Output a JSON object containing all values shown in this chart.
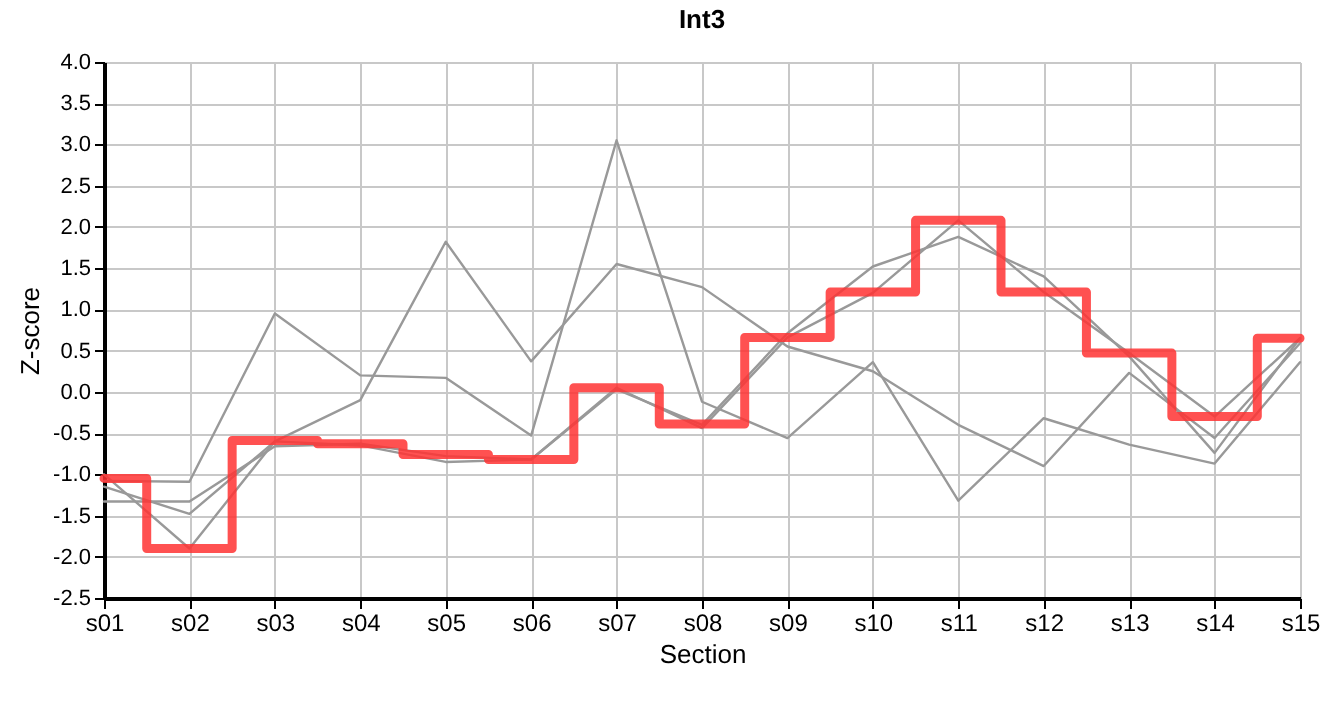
{
  "chart_data": {
    "type": "line",
    "title": "Int3",
    "xlabel": "Section",
    "ylabel": "Z-score",
    "categories": [
      "s01",
      "s02",
      "s03",
      "s04",
      "s05",
      "s06",
      "s07",
      "s08",
      "s09",
      "s10",
      "s11",
      "s12",
      "s13",
      "s14",
      "s15"
    ],
    "series": [
      {
        "color": "#999999",
        "values": [
          -1.15,
          -1.48,
          -0.6,
          -0.1,
          1.82,
          0.37,
          1.55,
          1.27,
          0.55,
          0.25,
          -0.4,
          -0.9,
          0.23,
          -0.56,
          0.59
        ]
      },
      {
        "color": "#999999",
        "values": [
          -1.08,
          -1.09,
          0.95,
          0.2,
          0.17,
          -0.53,
          3.05,
          -0.12,
          -0.56,
          0.36,
          -1.32,
          -0.32,
          -0.64,
          -0.87,
          0.36
        ]
      },
      {
        "color": "#999999",
        "values": [
          -1.0,
          -1.9,
          -0.6,
          -0.65,
          -0.85,
          -0.82,
          0.03,
          -0.4,
          0.71,
          1.52,
          1.88,
          1.4,
          0.43,
          -0.74,
          0.65
        ]
      },
      {
        "color": "#999999",
        "values": [
          -1.33,
          -1.33,
          -0.66,
          -0.63,
          -0.78,
          -0.82,
          0.05,
          -0.44,
          0.66,
          1.2,
          2.08,
          1.21,
          0.47,
          -0.3,
          0.65
        ]
      },
      {
        "type": "step",
        "color": "#ff3333",
        "values": [
          -1.05,
          -1.9,
          -0.59,
          -0.63,
          -0.76,
          -0.82,
          0.05,
          -0.39,
          0.66,
          1.21,
          2.08,
          1.21,
          0.47,
          -0.3,
          0.65
        ]
      }
    ],
    "ylim": [
      -2.5,
      4.0
    ],
    "yticks": [
      -2.5,
      {
        "value": -2,
        "label": "-2.0"
      },
      -1.5,
      {
        "value": -1,
        "label": "-1.0"
      },
      -0.5,
      {
        "value": 0,
        "label": "0.0"
      },
      0.5,
      {
        "value": 1,
        "label": "1.0"
      },
      1.5,
      {
        "value": 2,
        "label": "2.0"
      },
      2.5,
      {
        "value": 3,
        "label": "3.0"
      },
      3.5,
      {
        "value": 4,
        "label": "4.0"
      }
    ],
    "grid": true
  }
}
